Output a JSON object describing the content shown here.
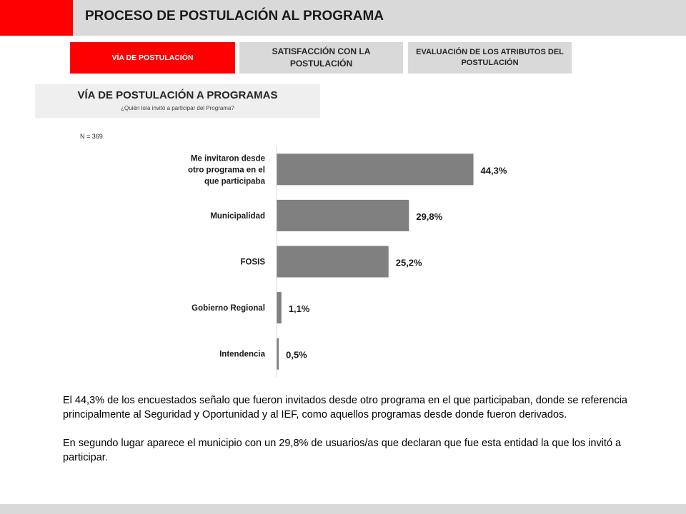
{
  "header": {
    "title": "PROCESO DE POSTULACIÓN AL PROGRAMA",
    "accent_color": "#ff0000"
  },
  "tabs": [
    {
      "label": "VÍA DE POSTULACIÓN",
      "active": true
    },
    {
      "label": "SATISFACCIÓN CON LA POSTULACIÓN",
      "active": false
    },
    {
      "label": "EVALUACIÓN DE LOS ATRIBUTOS DEL POSTULACIÓN",
      "active": false
    }
  ],
  "section": {
    "title": "VÍA DE POSTULACIÓN A PROGRAMAS",
    "subtitle": "¿Quién lo/a  invitó a participar del Programa?"
  },
  "sample_note": "N = 369",
  "chart_data": {
    "type": "bar",
    "orientation": "horizontal",
    "categories": [
      "Me invitaron desde otro programa en el que participaba",
      "Municipalidad",
      "FOSIS",
      "Gobierno Regional",
      "Intendencia"
    ],
    "values": [
      44.3,
      29.8,
      25.2,
      1.1,
      0.5
    ],
    "data_labels": [
      "44,3%",
      "29,8%",
      "25,2%",
      "1,1%",
      "0,5%"
    ],
    "bar_color": "#808080",
    "xlim": [
      0,
      100
    ],
    "grid": false
  },
  "body": {
    "paragraph_1": "El 44,3% de los encuestados señalo que fueron invitados desde otro programa en el que participaban, donde se referencia principalmente al Seguridad y Oportunidad y al IEF, como aquellos programas desde donde fueron derivados.",
    "paragraph_2": "En segundo lugar aparece el municipio con un 29,8% de usuarios/as que declaran que fue esta entidad la que los invitó a participar."
  }
}
